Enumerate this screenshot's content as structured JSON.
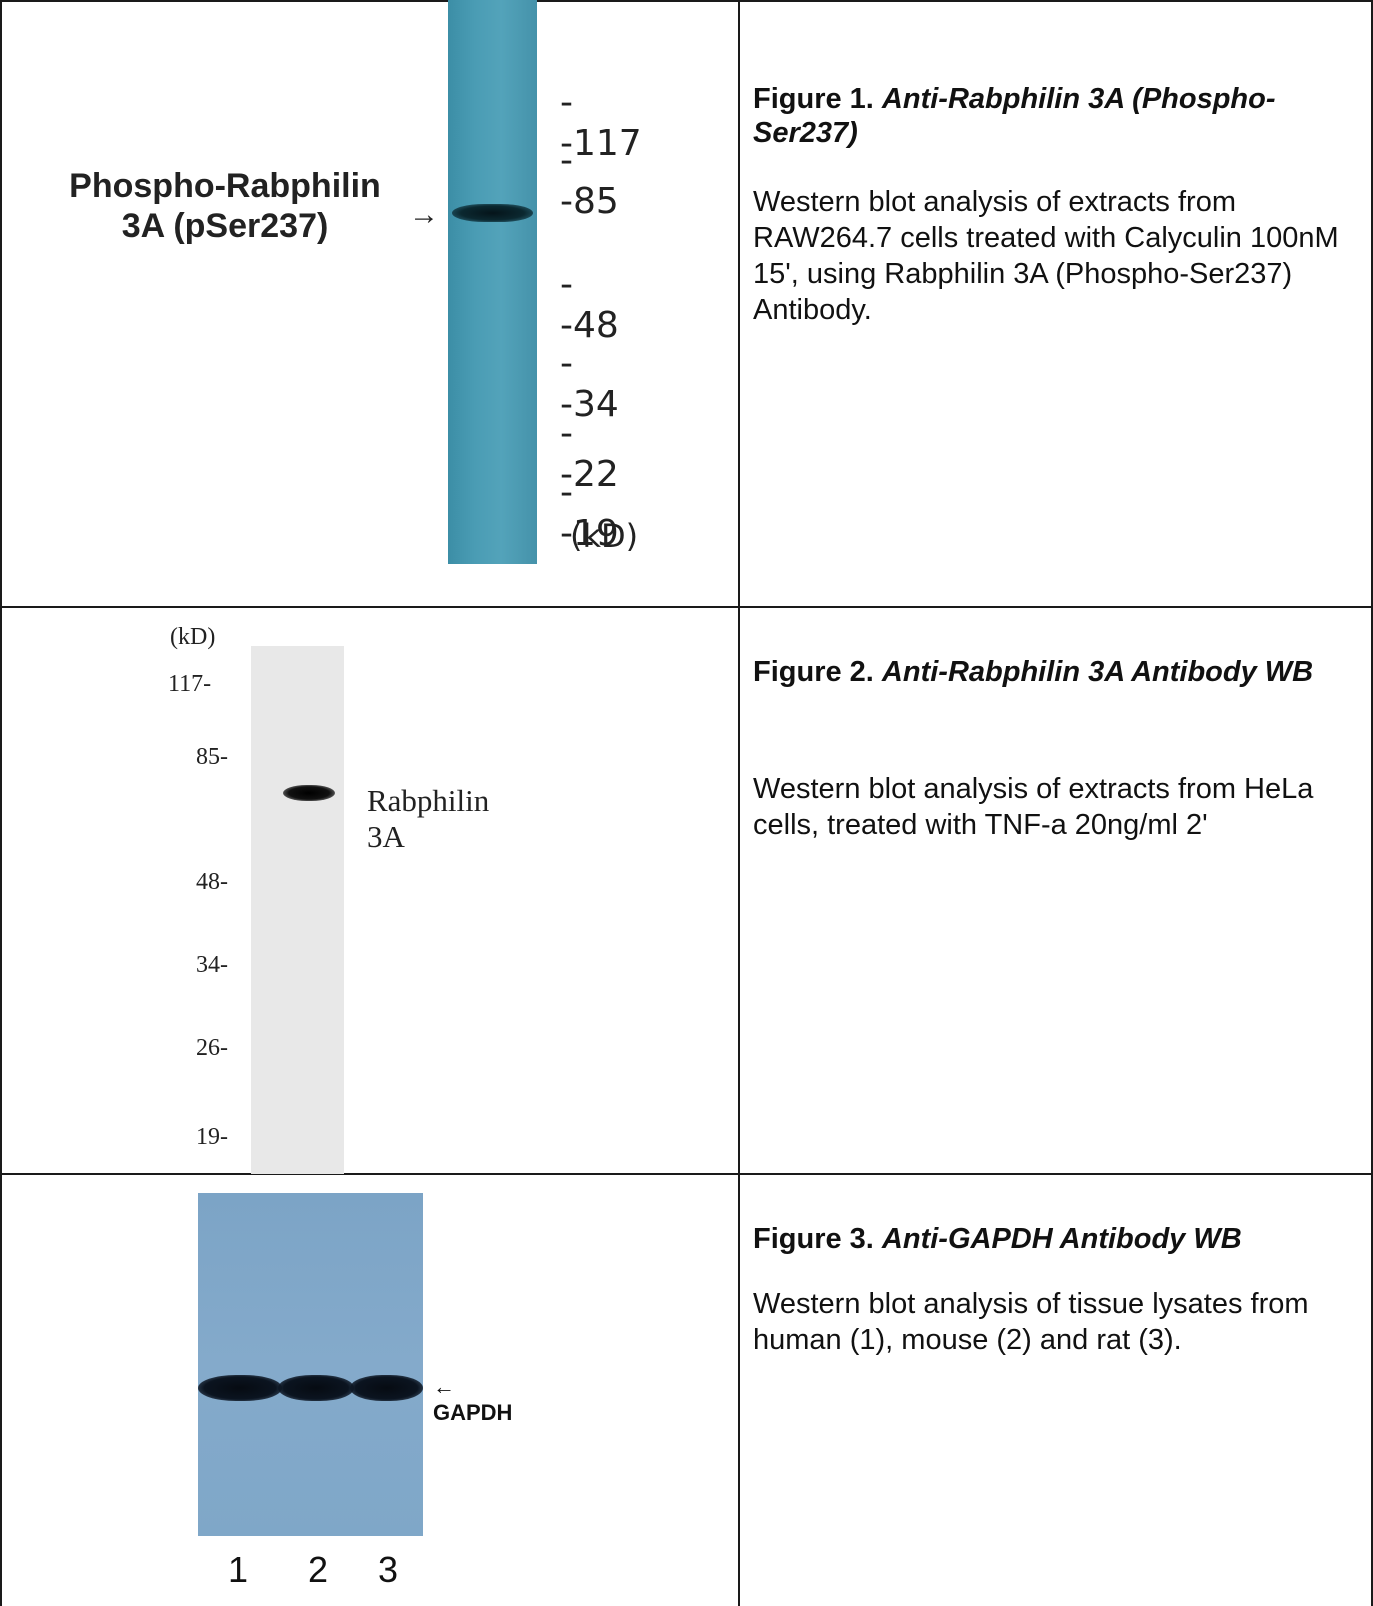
{
  "figures": [
    {
      "title_prefix": "Figure 1.",
      "title_italic": "Anti-Rabphilin 3A (Phospho-Ser237)",
      "description": "Western blot analysis of extracts from RAW264.7 cells treated with Calyculin 100nM 15', using Rabphilin 3A (Phospho-Ser237) Antibody.",
      "blot": {
        "band_label_line1": "Phospho-Rabphilin",
        "band_label_line2": "3A (pSer237)",
        "arrow": "→",
        "markers": [
          "--117",
          "--85",
          "--48",
          "--34",
          "--22",
          "--19"
        ],
        "unit": "(kD)"
      },
      "colors": {
        "membrane": "#4a9cb4",
        "band": "#0b2830"
      }
    },
    {
      "title_prefix": "Figure 2.",
      "title_italic": "Anti-Rabphilin 3A Antibody WB",
      "description": "Western blot analysis of extracts from HeLa cells, treated with TNF-a 20ng/ml 2'",
      "blot": {
        "unit": "(kD)",
        "markers": [
          "117-",
          "85-",
          "48-",
          "34-",
          "26-",
          "19-"
        ],
        "band_label": "Rabphilin 3A"
      },
      "colors": {
        "membrane": "#e8e8e8",
        "band": "#111111"
      }
    },
    {
      "title_prefix": "Figure 3.",
      "title_italic": "Anti-GAPDH Antibody WB",
      "description": "Western blot analysis of tissue lysates from human (1), mouse (2) and rat (3).",
      "blot": {
        "band_label": "GAPDH",
        "arrow": "←",
        "lanes": [
          "1",
          "2",
          "3"
        ]
      },
      "colors": {
        "membrane": "#84aacb",
        "band": "#0b1420"
      }
    }
  ]
}
